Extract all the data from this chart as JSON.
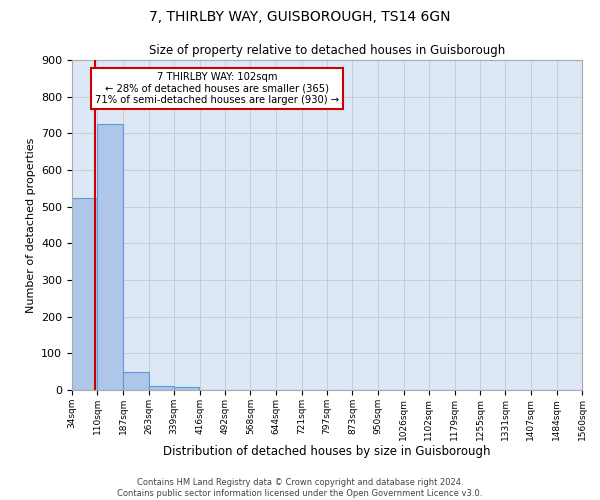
{
  "title1": "7, THIRLBY WAY, GUISBOROUGH, TS14 6GN",
  "title2": "Size of property relative to detached houses in Guisborough",
  "xlabel": "Distribution of detached houses by size in Guisborough",
  "ylabel": "Number of detached properties",
  "footer1": "Contains HM Land Registry data © Crown copyright and database right 2024.",
  "footer2": "Contains public sector information licensed under the Open Government Licence v3.0.",
  "bar_values": [
    525,
    725,
    48,
    11,
    8,
    0,
    0,
    0,
    0,
    0,
    0,
    0,
    0,
    0,
    0,
    0,
    0,
    0,
    0,
    0
  ],
  "bin_edges": [
    34,
    110,
    187,
    263,
    339,
    416,
    492,
    568,
    644,
    721,
    797,
    873,
    950,
    1026,
    1102,
    1179,
    1255,
    1331,
    1407,
    1484,
    1560
  ],
  "xtick_labels": [
    "34sqm",
    "110sqm",
    "187sqm",
    "263sqm",
    "339sqm",
    "416sqm",
    "492sqm",
    "568sqm",
    "644sqm",
    "721sqm",
    "797sqm",
    "873sqm",
    "950sqm",
    "1026sqm",
    "1102sqm",
    "1179sqm",
    "1255sqm",
    "1331sqm",
    "1407sqm",
    "1484sqm",
    "1560sqm"
  ],
  "bar_color": "#aec6e8",
  "bar_edge_color": "#5b9bd5",
  "grid_color": "#cccccc",
  "background_color": "#dce8f5",
  "property_value": 102,
  "red_line_color": "#cc0000",
  "annotation_line1": "7 THIRLBY WAY: 102sqm",
  "annotation_line2": "← 28% of detached houses are smaller (365)",
  "annotation_line3": "71% of semi-detached houses are larger (930) →",
  "annotation_box_color": "#cc0000",
  "ylim": [
    0,
    900
  ],
  "yticks": [
    0,
    100,
    200,
    300,
    400,
    500,
    600,
    700,
    800,
    900
  ]
}
